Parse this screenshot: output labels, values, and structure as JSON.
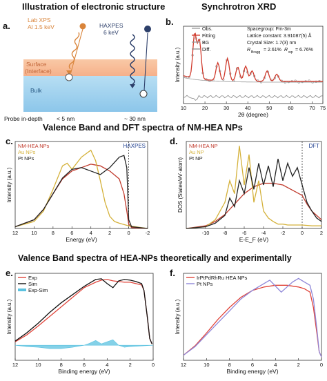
{
  "sections": {
    "top_left": "Illustration of electronic structure",
    "top_right": "Synchrotron XRD",
    "middle": "Valence Band and DFT spectra of NM-HEA NPs",
    "bottom": "Valence Band spectra of HEA-NPs theoretically and experimentally"
  },
  "panel_a": {
    "letter": "a.",
    "lab_xps_1": "Lab XPS",
    "lab_xps_2": "Al 1.5 keV",
    "haxpes_1": "HAXPES",
    "haxpes_2": "6 keV",
    "surface_1": "Surface",
    "surface_2": "(Interface)",
    "bulk": "Bulk",
    "probe_label": "Probe in-depth",
    "probe_shallow": "< 5 nm",
    "probe_deep": "~ 30 nm",
    "colors": {
      "surface": "#f6b08a",
      "bulk": "#9fd0ec",
      "lab": "#d9843a",
      "hax": "#2d3f6a"
    }
  },
  "chart_data": [
    {
      "panel": "b.",
      "type": "line",
      "title": "",
      "xlabel": "2θ (degree)",
      "ylabel": "Intensity (a.u.)",
      "xlim": [
        10,
        75
      ],
      "xticks": [
        10,
        20,
        30,
        40,
        50,
        60,
        70,
        75
      ],
      "legend": [
        "Obs.",
        "Fitting",
        "BG",
        "Diff."
      ],
      "annotations": [
        "Spacegroup: Fm-3m",
        "Lattice constant: 3.91087(5) Å",
        "Crystal Size: 1.7(3) nm",
        "R",
        "Bragg",
        "= 2.61%",
        "R",
        "wp",
        "= 6.76%"
      ],
      "peaks": [
        [
          15.2,
          0.95
        ],
        [
          17.4,
          0.82
        ],
        [
          26.0,
          0.38
        ],
        [
          30.5,
          0.48
        ],
        [
          35.3,
          0.3
        ],
        [
          39.0,
          0.32
        ],
        [
          42.0,
          0.22
        ],
        [
          49.0,
          0.22
        ],
        [
          53.5,
          0.15
        ]
      ]
    },
    {
      "panel": "c.",
      "type": "line",
      "xlabel": "Energy (eV)",
      "ylabel": "Intensity (a.u.)",
      "xlim": [
        12,
        -2
      ],
      "xticks": [
        12,
        10,
        8,
        6,
        4,
        2,
        0,
        -2
      ],
      "marker_label": "HAXPES",
      "series": [
        {
          "name": "NM-HEA NPs",
          "color": "#c0392b",
          "x": [
            12,
            10,
            9,
            8,
            7,
            6,
            5,
            4,
            3,
            2,
            1,
            0.5,
            0.2,
            0,
            -0.3,
            -2
          ],
          "y": [
            0.02,
            0.1,
            0.22,
            0.4,
            0.57,
            0.66,
            0.7,
            0.74,
            0.72,
            0.66,
            0.57,
            0.4,
            0.2,
            0.05,
            0.01,
            0.0
          ]
        },
        {
          "name": "Au NPs",
          "color": "#d4b13a",
          "x": [
            12,
            10,
            9,
            8,
            7,
            6.5,
            6,
            5,
            4,
            3.5,
            3,
            2.5,
            2,
            1.5,
            1,
            0,
            -2
          ],
          "y": [
            0.02,
            0.08,
            0.2,
            0.45,
            0.72,
            0.75,
            0.68,
            0.82,
            0.9,
            0.78,
            0.55,
            0.3,
            0.14,
            0.08,
            0.06,
            0.03,
            0.0
          ]
        },
        {
          "name": "Pt NPs",
          "color": "#222222",
          "x": [
            12,
            10,
            9,
            8,
            7,
            6,
            5,
            4,
            3,
            2,
            1.5,
            1,
            0.5,
            0.2,
            0,
            -0.3,
            -2
          ],
          "y": [
            0.02,
            0.1,
            0.22,
            0.4,
            0.58,
            0.68,
            0.7,
            0.66,
            0.62,
            0.7,
            0.76,
            0.82,
            0.84,
            0.7,
            0.1,
            0.02,
            0.0
          ]
        }
      ]
    },
    {
      "panel": "d.",
      "type": "line",
      "xlabel": "E-E_F (eV)",
      "ylabel": "DOS (States/eV·atom)",
      "xlim": [
        -12,
        2
      ],
      "xticks": [
        -10,
        -8,
        -6,
        -4,
        -2,
        0,
        2
      ],
      "marker_label": "DFT",
      "series": [
        {
          "name": "NM-HEA NP",
          "color": "#c0392b",
          "x": [
            -12,
            -10,
            -9,
            -8,
            -7,
            -6,
            -5,
            -4,
            -3,
            -2,
            -1,
            0,
            0.5,
            1,
            1.5,
            2
          ],
          "y": [
            0.0,
            0.03,
            0.08,
            0.16,
            0.28,
            0.4,
            0.48,
            0.52,
            0.52,
            0.5,
            0.44,
            0.38,
            0.28,
            0.2,
            0.15,
            0.1
          ]
        },
        {
          "name": "Au NP",
          "color": "#d4b13a",
          "x": [
            -12,
            -10,
            -9,
            -8,
            -7.5,
            -7,
            -6.5,
            -6,
            -5.5,
            -5,
            -4.5,
            -4,
            -3.5,
            -3,
            -2.5,
            -2,
            -1.5,
            -1,
            0,
            1,
            2
          ],
          "y": [
            0.0,
            0.02,
            0.1,
            0.3,
            0.55,
            0.4,
            0.95,
            0.5,
            0.85,
            0.3,
            0.55,
            0.2,
            0.12,
            0.08,
            0.05,
            0.05,
            0.04,
            0.04,
            0.04,
            0.03,
            0.03
          ]
        },
        {
          "name": "Pt NP",
          "color": "#222222",
          "x": [
            -12,
            -10,
            -9,
            -8,
            -7.5,
            -7,
            -6.5,
            -6,
            -5.5,
            -5,
            -4.5,
            -4,
            -3.5,
            -3,
            -2.5,
            -2,
            -1.5,
            -1,
            -0.5,
            0,
            0.5,
            1,
            1.5,
            2
          ],
          "y": [
            0.0,
            0.02,
            0.06,
            0.15,
            0.35,
            0.25,
            0.55,
            0.4,
            0.7,
            0.45,
            0.75,
            0.5,
            0.72,
            0.48,
            0.8,
            0.55,
            0.75,
            0.6,
            0.7,
            0.5,
            0.3,
            0.2,
            0.12,
            0.08
          ]
        }
      ]
    },
    {
      "panel": "e.",
      "type": "line",
      "xlabel": "Binding energy (eV)",
      "ylabel": "Intensity (a.u.)",
      "xlim": [
        12,
        0
      ],
      "xticks": [
        12,
        10,
        8,
        6,
        4,
        2,
        0
      ],
      "series": [
        {
          "name": "Exp",
          "color": "#e0443a",
          "x": [
            12,
            11,
            10,
            9,
            8,
            7,
            6,
            5,
            4.5,
            4,
            3.5,
            3,
            2.5,
            2,
            1.5,
            1,
            0.8,
            0.5,
            0.3,
            0.1
          ],
          "y": [
            0.05,
            0.15,
            0.28,
            0.42,
            0.56,
            0.7,
            0.84,
            0.92,
            0.95,
            0.96,
            0.94,
            0.93,
            0.92,
            0.92,
            0.9,
            0.88,
            0.8,
            0.4,
            0.1,
            0.02
          ]
        },
        {
          "name": "Sim",
          "color": "#111111",
          "x": [
            12,
            11,
            10,
            9,
            8,
            7,
            6,
            5,
            4.5,
            4,
            3.5,
            3,
            2.5,
            2,
            1.5,
            1,
            0.8,
            0.5,
            0.3,
            0.1
          ],
          "y": [
            0.06,
            0.18,
            0.32,
            0.48,
            0.62,
            0.74,
            0.86,
            0.96,
            0.97,
            0.9,
            0.84,
            0.94,
            0.96,
            0.95,
            0.93,
            0.9,
            0.8,
            0.4,
            0.1,
            0.02
          ]
        },
        {
          "name": "Exp-Sim",
          "color": "#5bc2e0",
          "x": [
            12,
            11,
            10,
            9,
            8,
            7,
            6,
            5.5,
            5,
            4.5,
            4,
            3.5,
            3,
            2.5,
            2,
            1,
            0
          ],
          "y": [
            0.0,
            -0.02,
            -0.03,
            -0.05,
            -0.05,
            -0.03,
            0.0,
            0.03,
            0.07,
            0.02,
            0.05,
            0.08,
            0.0,
            -0.03,
            -0.02,
            -0.01,
            0.0
          ]
        }
      ]
    },
    {
      "panel": "f.",
      "type": "line",
      "xlabel": "Binding energy (eV)",
      "ylabel": "Intensity (a.u.)",
      "xlim": [
        12,
        0
      ],
      "xticks": [
        12,
        10,
        8,
        6,
        4,
        2,
        0
      ],
      "series": [
        {
          "name": "IrPtPdRhRu HEA NPs",
          "color": "#e0443a",
          "x": [
            12,
            11,
            10,
            9,
            8,
            7,
            6,
            5,
            4,
            3,
            2,
            1.5,
            1,
            0.7,
            0.4,
            0.2,
            0
          ],
          "y": [
            0.04,
            0.15,
            0.3,
            0.46,
            0.6,
            0.72,
            0.8,
            0.84,
            0.86,
            0.86,
            0.84,
            0.82,
            0.78,
            0.6,
            0.3,
            0.08,
            0.02
          ]
        },
        {
          "name": "Pt NPs",
          "color": "#8e86d8",
          "x": [
            12,
            11,
            10,
            9,
            8,
            7,
            6,
            5,
            4.5,
            4,
            3.5,
            3,
            2.5,
            2,
            1.5,
            1,
            0.7,
            0.4,
            0.2,
            0
          ],
          "y": [
            0.04,
            0.14,
            0.28,
            0.42,
            0.56,
            0.7,
            0.8,
            0.88,
            0.92,
            0.85,
            0.78,
            0.84,
            0.9,
            0.94,
            0.9,
            0.86,
            0.7,
            0.35,
            0.08,
            0.02
          ]
        }
      ]
    }
  ]
}
